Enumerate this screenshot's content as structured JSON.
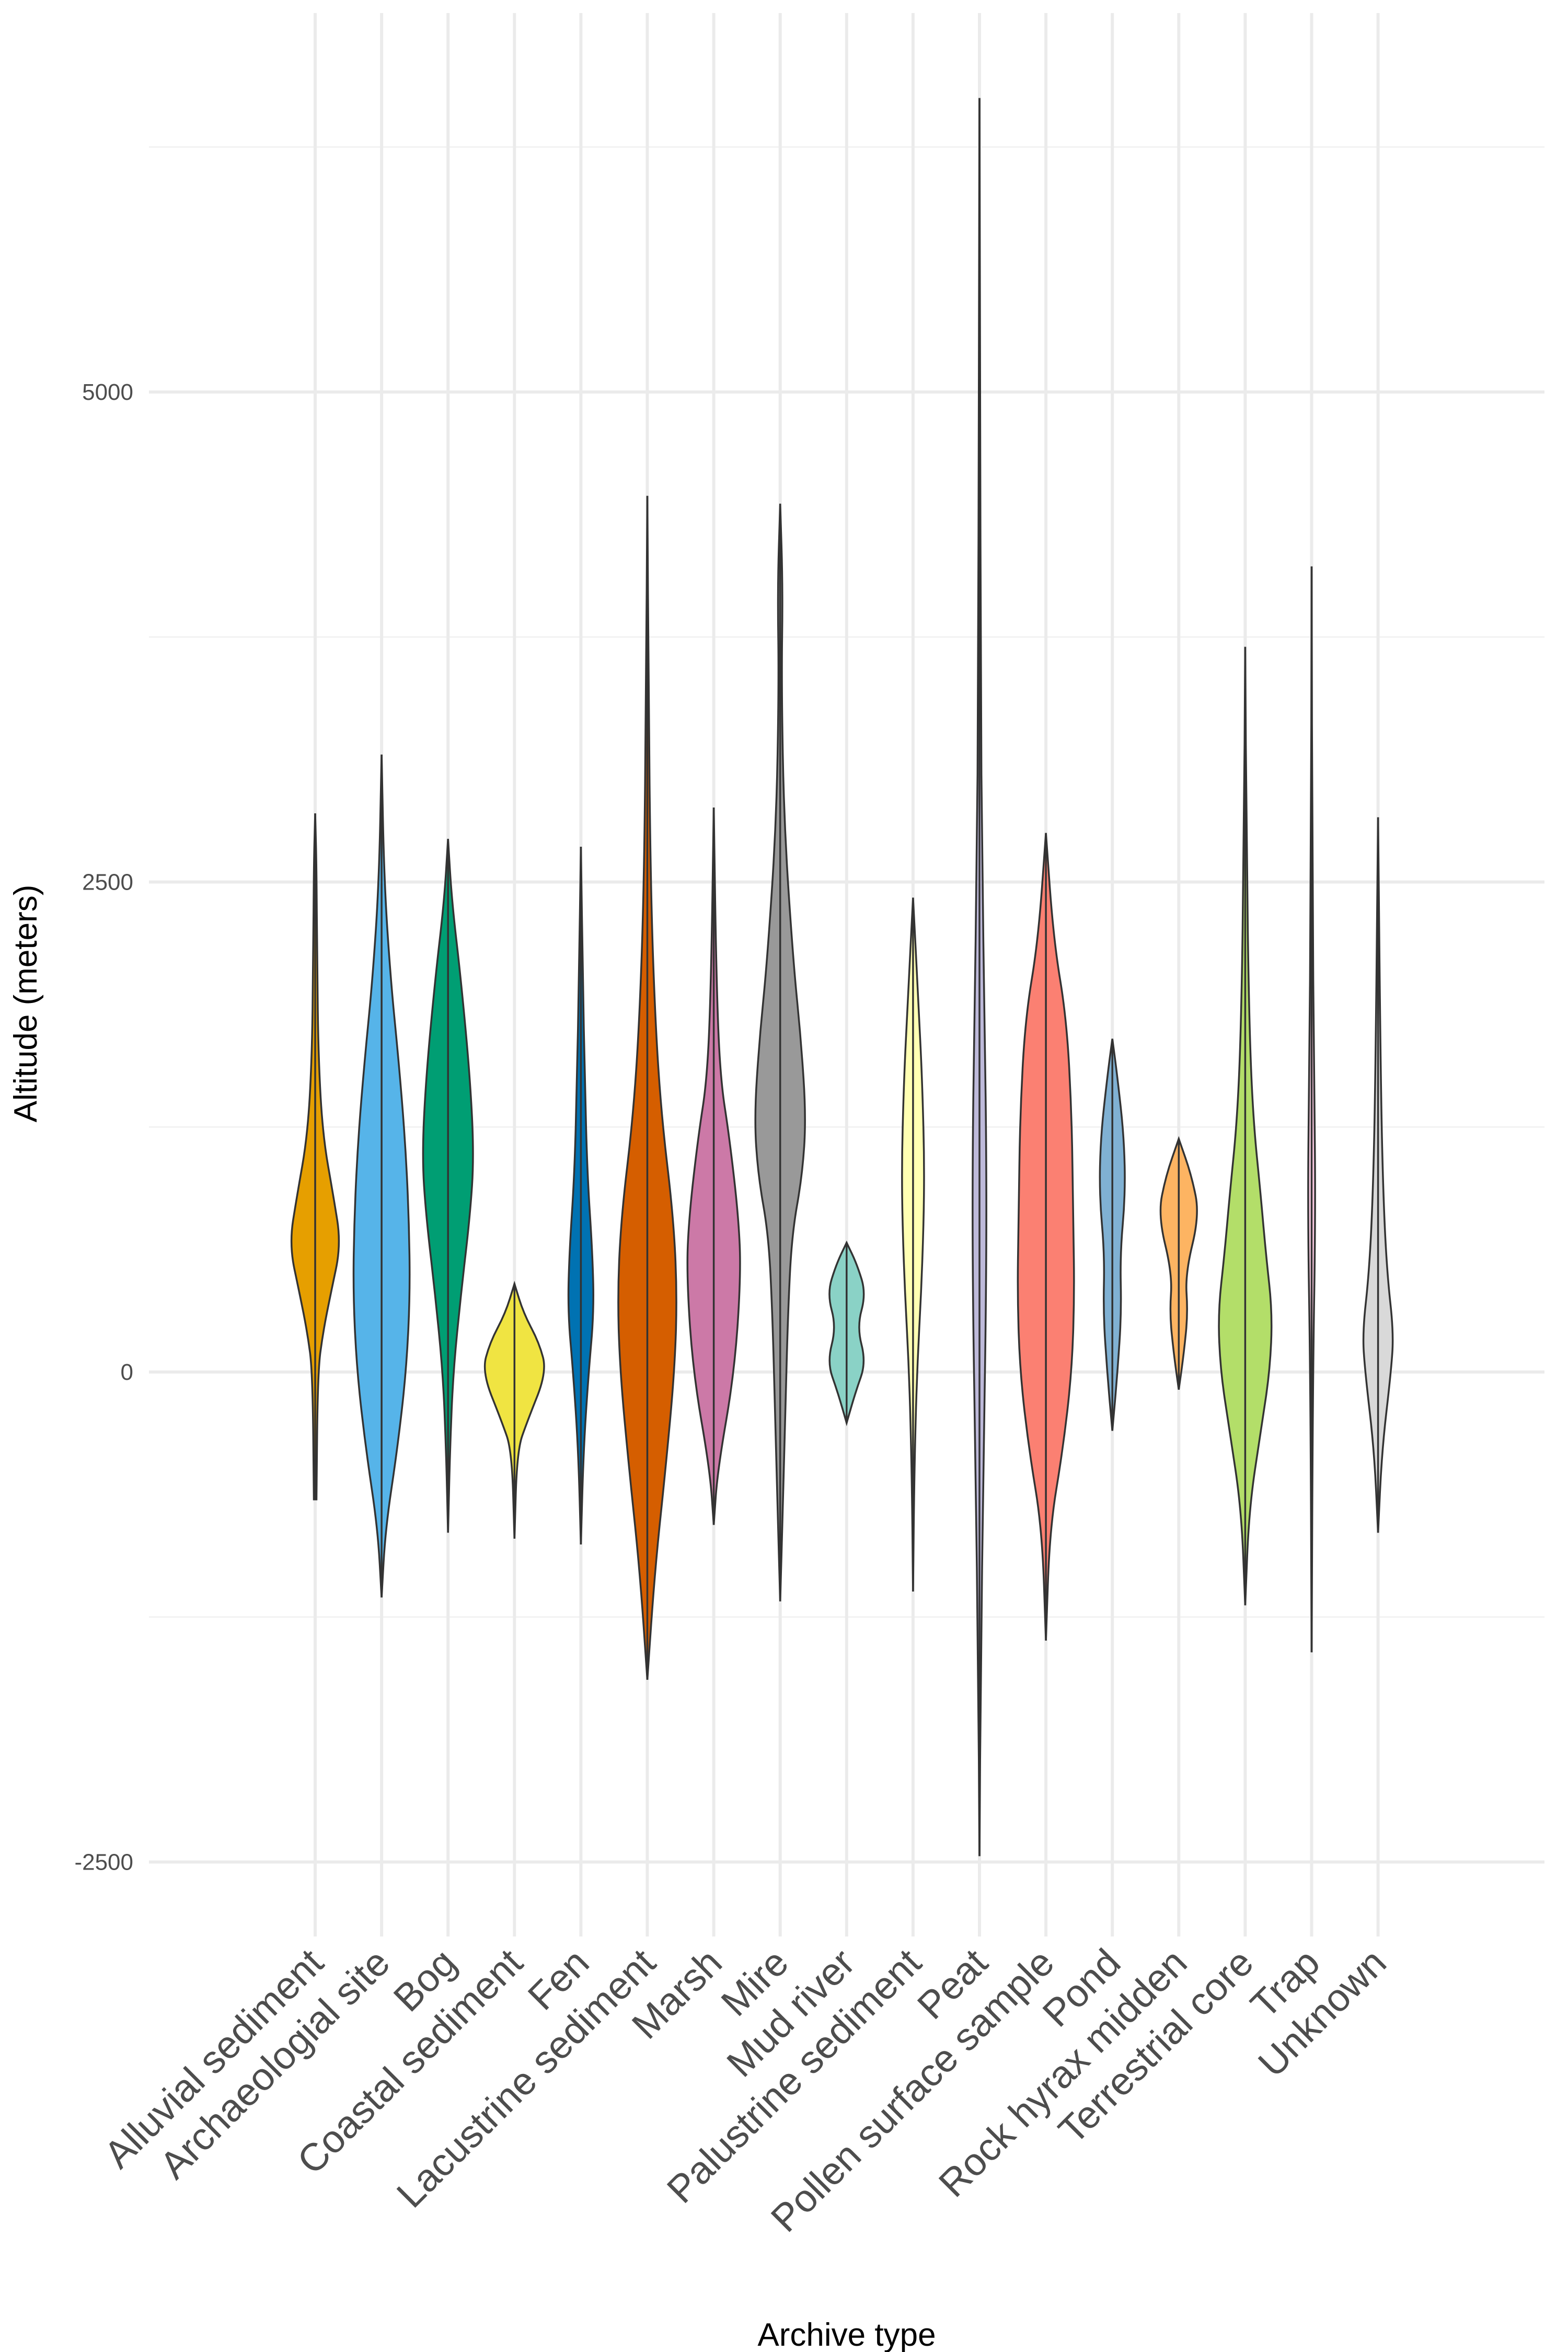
{
  "chart_data": {
    "type": "violin",
    "xlabel": "Archive type",
    "ylabel": "Altitude (meters)",
    "ylim": [
      -2900,
      6500
    ],
    "yticks": [
      -2500,
      0,
      2500,
      5000
    ],
    "grid": true,
    "legend": "none",
    "categories": [
      "Alluvial sediment",
      "Archaeologial site",
      "Bog",
      "Coastal sediment",
      "Fen",
      "Lacustrine sediment",
      "Marsh",
      "Mire",
      "Mud river",
      "Palustrine sediment",
      "Peat",
      "Pollen surface sample",
      "Pond",
      "Rock hyrax midden",
      "Terrestrial core",
      "Trap",
      "Unknown"
    ],
    "series": [
      {
        "category": "Alluvial sediment",
        "color": "#E69F00",
        "min": -650,
        "max": 2850,
        "density": [
          [
            -650,
            0.01
          ],
          [
            0,
            0.02
          ],
          [
            200,
            0.06
          ],
          [
            400,
            0.12
          ],
          [
            650,
            0.2
          ],
          [
            900,
            0.14
          ],
          [
            1200,
            0.06
          ],
          [
            1600,
            0.025
          ],
          [
            2100,
            0.015
          ],
          [
            2600,
            0.01
          ],
          [
            2850,
            0
          ]
        ]
      },
      {
        "category": "Archaeologial site",
        "color": "#56B4E9",
        "min": -1150,
        "max": 3150,
        "density": [
          [
            -1150,
            0
          ],
          [
            -800,
            0.03
          ],
          [
            -400,
            0.12
          ],
          [
            0,
            0.19
          ],
          [
            400,
            0.22
          ],
          [
            800,
            0.21
          ],
          [
            1200,
            0.18
          ],
          [
            1600,
            0.13
          ],
          [
            2000,
            0.07
          ],
          [
            2500,
            0.02
          ],
          [
            3150,
            0
          ]
        ]
      },
      {
        "category": "Bog",
        "color": "#009E73",
        "min": -820,
        "max": 2720,
        "density": [
          [
            -820,
            0
          ],
          [
            -400,
            0.015
          ],
          [
            0,
            0.04
          ],
          [
            400,
            0.1
          ],
          [
            800,
            0.17
          ],
          [
            1100,
            0.2
          ],
          [
            1500,
            0.17
          ],
          [
            2000,
            0.1
          ],
          [
            2400,
            0.03
          ],
          [
            2720,
            0
          ]
        ]
      },
      {
        "category": "Coastal sediment",
        "color": "#F0E442",
        "min": -850,
        "max": 450,
        "density": [
          [
            -850,
            0
          ],
          [
            -400,
            0.02
          ],
          [
            -250,
            0.1
          ],
          [
            0,
            0.25
          ],
          [
            150,
            0.19
          ],
          [
            300,
            0.07
          ],
          [
            450,
            0
          ]
        ]
      },
      {
        "category": "Fen",
        "color": "#0072B2",
        "min": -880,
        "max": 2680,
        "density": [
          [
            -880,
            0
          ],
          [
            -400,
            0.02
          ],
          [
            0,
            0.06
          ],
          [
            300,
            0.1
          ],
          [
            600,
            0.09
          ],
          [
            1000,
            0.05
          ],
          [
            1500,
            0.03
          ],
          [
            2000,
            0.015
          ],
          [
            2680,
            0
          ]
        ]
      },
      {
        "category": "Lacustrine sediment",
        "color": "#D55E00",
        "min": -1570,
        "max": 4470,
        "density": [
          [
            -1570,
            0
          ],
          [
            -1000,
            0.06
          ],
          [
            -500,
            0.14
          ],
          [
            0,
            0.21
          ],
          [
            400,
            0.23
          ],
          [
            800,
            0.2
          ],
          [
            1300,
            0.11
          ],
          [
            1800,
            0.06
          ],
          [
            2500,
            0.025
          ],
          [
            3500,
            0.01
          ],
          [
            4470,
            0
          ]
        ]
      },
      {
        "category": "Marsh",
        "color": "#CC79A7",
        "min": -780,
        "max": 2880,
        "density": [
          [
            -780,
            0
          ],
          [
            -500,
            0.03
          ],
          [
            0,
            0.16
          ],
          [
            500,
            0.21
          ],
          [
            800,
            0.19
          ],
          [
            1200,
            0.12
          ],
          [
            1500,
            0.05
          ],
          [
            2000,
            0.02
          ],
          [
            2880,
            0
          ]
        ]
      },
      {
        "category": "Mire",
        "color": "#999999",
        "min": -1170,
        "max": 4430,
        "density": [
          [
            -1170,
            0
          ],
          [
            -700,
            0.02
          ],
          [
            -200,
            0.04
          ],
          [
            300,
            0.06
          ],
          [
            700,
            0.09
          ],
          [
            1000,
            0.17
          ],
          [
            1300,
            0.2
          ],
          [
            1700,
            0.16
          ],
          [
            2100,
            0.1
          ],
          [
            2800,
            0.03
          ],
          [
            3500,
            0.01
          ],
          [
            4000,
            0.02
          ],
          [
            4430,
            0
          ]
        ]
      },
      {
        "category": "Mud river",
        "color": "#8AD2C6",
        "min": -260,
        "max": 660,
        "density": [
          [
            -260,
            0
          ],
          [
            -100,
            0.07
          ],
          [
            50,
            0.15
          ],
          [
            230,
            0.08
          ],
          [
            400,
            0.15
          ],
          [
            550,
            0.08
          ],
          [
            660,
            0
          ]
        ]
      },
      {
        "category": "Palustrine sediment",
        "color": "#FFFFB3",
        "min": -1120,
        "max": 2420,
        "density": [
          [
            -1120,
            0
          ],
          [
            -500,
            0.01
          ],
          [
            0,
            0.03
          ],
          [
            500,
            0.07
          ],
          [
            1000,
            0.09
          ],
          [
            1500,
            0.07
          ],
          [
            1900,
            0.04
          ],
          [
            2420,
            0
          ]
        ]
      },
      {
        "category": "Peat",
        "color": "#BEBADA",
        "min": -2470,
        "max": 6500,
        "density": [
          [
            -2470,
            0
          ],
          [
            -1500,
            0.01
          ],
          [
            -500,
            0.03
          ],
          [
            300,
            0.05
          ],
          [
            1000,
            0.055
          ],
          [
            1800,
            0.04
          ],
          [
            2600,
            0.02
          ],
          [
            3500,
            0.01
          ],
          [
            5000,
            0.005
          ],
          [
            6500,
            0
          ]
        ]
      },
      {
        "category": "Pollen surface sample",
        "color": "#FB8072",
        "min": -1370,
        "max": 2750,
        "density": [
          [
            -1370,
            0
          ],
          [
            -800,
            0.03
          ],
          [
            -400,
            0.13
          ],
          [
            0,
            0.2
          ],
          [
            400,
            0.22
          ],
          [
            800,
            0.21
          ],
          [
            1300,
            0.2
          ],
          [
            1800,
            0.16
          ],
          [
            2200,
            0.06
          ],
          [
            2750,
            0
          ]
        ]
      },
      {
        "category": "Pond",
        "color": "#80B1D3",
        "min": -300,
        "max": 1700,
        "density": [
          [
            -300,
            0
          ],
          [
            0,
            0.04
          ],
          [
            300,
            0.07
          ],
          [
            600,
            0.06
          ],
          [
            900,
            0.1
          ],
          [
            1200,
            0.09
          ],
          [
            1500,
            0.04
          ],
          [
            1700,
            0
          ]
        ]
      },
      {
        "category": "Rock hyrax midden",
        "color": "#FDB462",
        "min": -90,
        "max": 1190,
        "density": [
          [
            -90,
            0
          ],
          [
            100,
            0.04
          ],
          [
            300,
            0.07
          ],
          [
            500,
            0.05
          ],
          [
            800,
            0.16
          ],
          [
            1000,
            0.1
          ],
          [
            1190,
            0
          ]
        ]
      },
      {
        "category": "Terrestrial core",
        "color": "#B3DE69",
        "min": -1190,
        "max": 3700,
        "density": [
          [
            -1190,
            0
          ],
          [
            -700,
            0.03
          ],
          [
            -300,
            0.12
          ],
          [
            0,
            0.19
          ],
          [
            300,
            0.21
          ],
          [
            600,
            0.16
          ],
          [
            900,
            0.12
          ],
          [
            1300,
            0.06
          ],
          [
            1800,
            0.03
          ],
          [
            2700,
            0.01
          ],
          [
            3700,
            0
          ]
        ]
      },
      {
        "category": "Trap",
        "color": "#FCCDE5",
        "min": -1430,
        "max": 4110,
        "density": [
          [
            -1430,
            0
          ],
          [
            0,
            0.01
          ],
          [
            800,
            0.03
          ],
          [
            1500,
            0.02
          ],
          [
            2500,
            0.005
          ],
          [
            4110,
            0
          ]
        ]
      },
      {
        "category": "Unknown",
        "color": "#D9D9D9",
        "min": -820,
        "max": 2830,
        "density": [
          [
            -820,
            0
          ],
          [
            -400,
            0.03
          ],
          [
            0,
            0.1
          ],
          [
            200,
            0.12
          ],
          [
            500,
            0.07
          ],
          [
            900,
            0.04
          ],
          [
            1500,
            0.02
          ],
          [
            2830,
            0
          ]
        ]
      }
    ]
  }
}
